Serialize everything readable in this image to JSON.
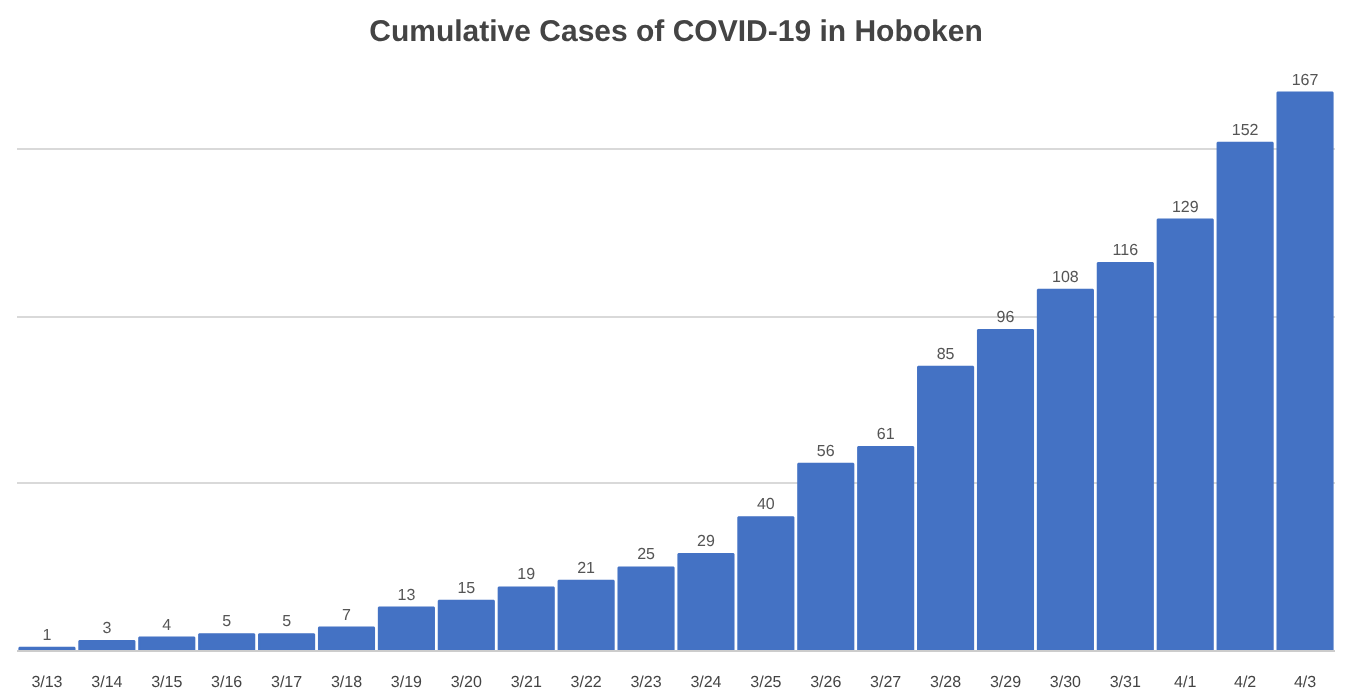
{
  "chart_data": {
    "type": "bar",
    "title": "Cumulative Cases of COVID-19 in Hoboken",
    "categories": [
      "3/13",
      "3/14",
      "3/15",
      "3/16",
      "3/17",
      "3/18",
      "3/19",
      "3/20",
      "3/21",
      "3/22",
      "3/23",
      "3/24",
      "3/25",
      "3/26",
      "3/27",
      "3/28",
      "3/29",
      "3/30",
      "3/31",
      "4/1",
      "4/2",
      "4/3"
    ],
    "values": [
      1,
      3,
      4,
      5,
      5,
      7,
      13,
      15,
      19,
      21,
      25,
      29,
      40,
      56,
      61,
      85,
      96,
      108,
      116,
      129,
      152,
      167
    ],
    "color": "#4472c4",
    "grid": "y",
    "tick_labels": "x",
    "data_labels": true
  }
}
